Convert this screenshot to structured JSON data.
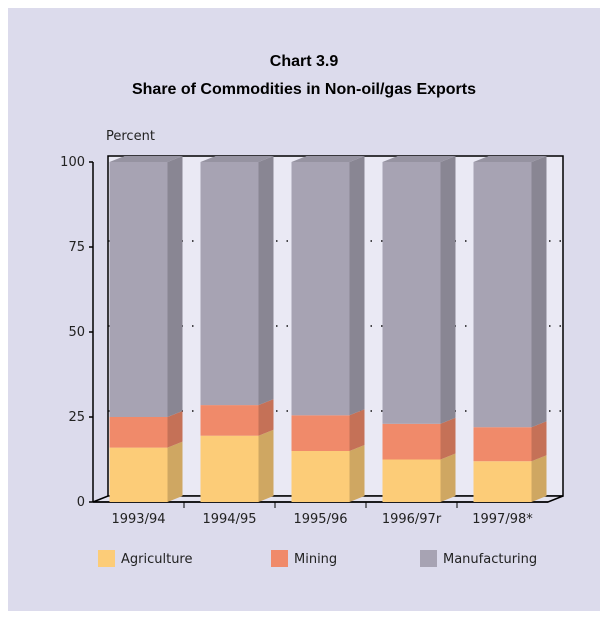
{
  "chart_data": {
    "type": "bar",
    "stacked": true,
    "three_d": true,
    "title": "Chart 3.9",
    "subtitle": "Share of Commodities in Non-oil/gas Exports",
    "ylabel": "Percent",
    "ylim": [
      0,
      100
    ],
    "yticks": [
      0,
      25,
      50,
      75,
      100
    ],
    "grid": "dotted",
    "legend_position": "bottom",
    "categories": [
      "1993/94",
      "1994/95",
      "1995/96",
      "1996/97r",
      "1997/98*"
    ],
    "series": [
      {
        "name": "Agriculture",
        "color": "#fccc78",
        "values": [
          16,
          19.5,
          15,
          12.5,
          12
        ]
      },
      {
        "name": "Mining",
        "color": "#f08a6a",
        "values": [
          9,
          9,
          10.5,
          10.5,
          10
        ]
      },
      {
        "name": "Manufacturing",
        "color": "#a7a3b3",
        "values": [
          75,
          71.5,
          74.5,
          77,
          78
        ]
      }
    ]
  }
}
